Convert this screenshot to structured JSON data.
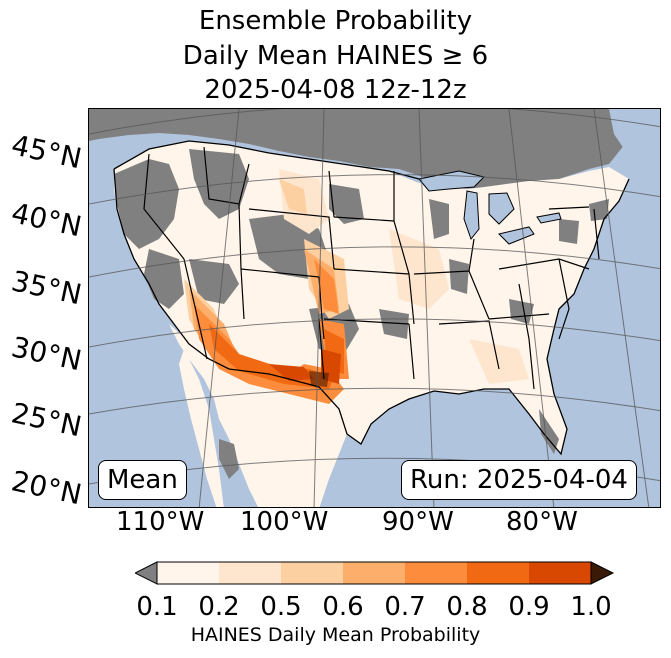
{
  "title": {
    "line1": "Ensemble Probability",
    "line2": "Daily Mean HAINES ≥ 6",
    "line3": "2025-04-08 12z-12z"
  },
  "map": {
    "ocean_color": "#b0c4de",
    "masked_color": "#808080",
    "lat_labels": [
      "45°N",
      "40°N",
      "35°N",
      "30°N",
      "25°N",
      "20°N"
    ],
    "lon_labels": [
      "110°W",
      "100°W",
      "90°W",
      "80°W"
    ],
    "stat_label": "Mean",
    "run_label": "Run: 2025-04-04"
  },
  "colorbar": {
    "label": "HAINES Daily Mean Probability",
    "ticks": [
      "0.1",
      "0.2",
      "0.5",
      "0.6",
      "0.7",
      "0.8",
      "0.9",
      "1.0"
    ],
    "under_color": "#808080",
    "over_color": "#3a1a06",
    "colors": [
      "#fff5eb",
      "#fee6ce",
      "#fdd0a2",
      "#fdae6b",
      "#fd8d3c",
      "#f16913",
      "#d94801"
    ]
  }
}
